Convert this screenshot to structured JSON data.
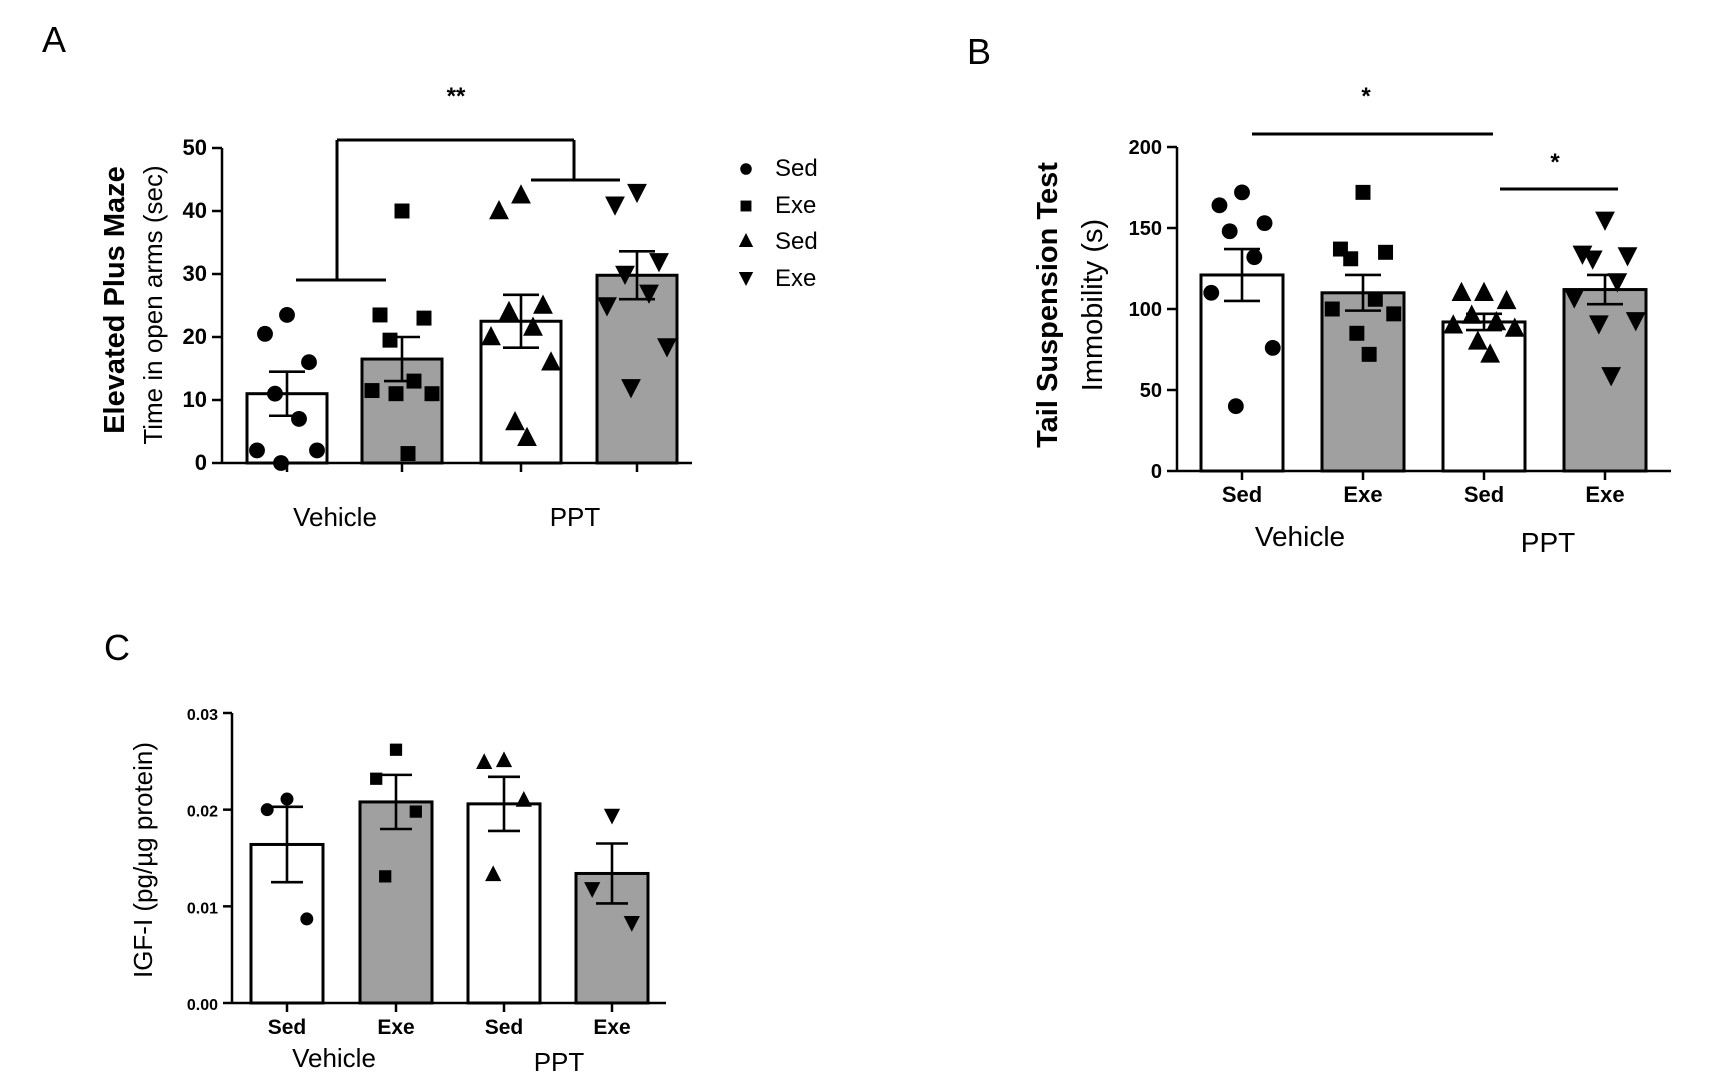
{
  "colors": {
    "white_bar": "#ffffff",
    "grey_bar": "#a0a0a0",
    "ink": "#000000"
  },
  "chart_data": [
    {
      "panel": "A",
      "type": "bar",
      "title_bold": "Elevated Plus Maze",
      "ylabel": "Time in open arms (sec)",
      "ylim": [
        0,
        50
      ],
      "yticks": [
        "0",
        "10",
        "20",
        "30",
        "40",
        "50"
      ],
      "groups": [
        "Vehicle",
        "PPT"
      ],
      "legend": [
        {
          "marker": "circle",
          "label": "Sed"
        },
        {
          "marker": "square",
          "label": "Exe"
        },
        {
          "marker": "triangle-up",
          "label": "Sed"
        },
        {
          "marker": "triangle-down",
          "label": "Exe"
        }
      ],
      "significance": "**",
      "bars": [
        {
          "mean": 11,
          "sem": 3.5,
          "fill": "white",
          "marker": "circle",
          "points": [
            23.5,
            20.5,
            16,
            11,
            7,
            2,
            2,
            0
          ]
        },
        {
          "mean": 16.5,
          "sem": 3.5,
          "fill": "grey",
          "marker": "square",
          "points": [
            40,
            23.5,
            23,
            19.5,
            13,
            11.5,
            11,
            11,
            1.5
          ]
        },
        {
          "mean": 22.5,
          "sem": 4.2,
          "fill": "white",
          "marker": "triangle-up",
          "points": [
            42.5,
            40,
            25,
            24,
            21.5,
            20,
            16,
            6.5,
            4
          ]
        },
        {
          "mean": 29.8,
          "sem": 3.8,
          "fill": "grey",
          "marker": "triangle-down",
          "points": [
            43,
            41,
            32,
            30,
            27,
            25,
            18.5,
            12
          ]
        }
      ]
    },
    {
      "panel": "B",
      "type": "bar",
      "title_bold": "Tail Suspension Test",
      "ylabel": "Immobility (s)",
      "ylim": [
        0,
        200
      ],
      "yticks": [
        "0",
        "50",
        "100",
        "150",
        "200"
      ],
      "categories": [
        "Sed",
        "Exe",
        "Sed",
        "Exe"
      ],
      "groups": [
        "Vehicle",
        "PPT"
      ],
      "significance": [
        "*",
        "*"
      ],
      "bars": [
        {
          "mean": 121,
          "sem": 16,
          "fill": "white",
          "marker": "circle",
          "points": [
            172,
            164,
            153,
            148,
            132,
            110,
            76,
            40
          ]
        },
        {
          "mean": 110,
          "sem": 11,
          "fill": "grey",
          "marker": "square",
          "points": [
            172,
            137,
            135,
            131,
            106,
            100,
            97,
            85,
            72
          ]
        },
        {
          "mean": 92,
          "sem": 5,
          "fill": "white",
          "marker": "triangle-up",
          "points": [
            110,
            110,
            105,
            96,
            92,
            90,
            88,
            80,
            72
          ]
        },
        {
          "mean": 112,
          "sem": 9,
          "fill": "grey",
          "marker": "triangle-down",
          "points": [
            155,
            134,
            133,
            131,
            117,
            107,
            93,
            91,
            59
          ]
        }
      ]
    },
    {
      "panel": "C",
      "type": "bar",
      "ylabel": "IGF-I (pg/µg protein)",
      "ylim": [
        0,
        0.03
      ],
      "yticks": [
        "0.00",
        "0.01",
        "0.02",
        "0.03"
      ],
      "categories": [
        "Sed",
        "Exe",
        "Sed",
        "Exe"
      ],
      "groups": [
        "Vehicle",
        "PPT"
      ],
      "bars": [
        {
          "mean": 0.0164,
          "sem": 0.0039,
          "fill": "white",
          "marker": "circle",
          "points": [
            0.0211,
            0.02,
            0.0087
          ]
        },
        {
          "mean": 0.0208,
          "sem": 0.0028,
          "fill": "grey",
          "marker": "square",
          "points": [
            0.0262,
            0.0232,
            0.0198,
            0.0131
          ]
        },
        {
          "mean": 0.0206,
          "sem": 0.0028,
          "fill": "white",
          "marker": "triangle-up",
          "points": [
            0.0251,
            0.0249,
            0.021,
            0.0133
          ]
        },
        {
          "mean": 0.0134,
          "sem": 0.0031,
          "fill": "grey",
          "marker": "triangle-down",
          "points": [
            0.0194,
            0.0118,
            0.0083
          ]
        }
      ]
    }
  ],
  "panels": {
    "a": "A",
    "b": "B",
    "c": "C"
  }
}
